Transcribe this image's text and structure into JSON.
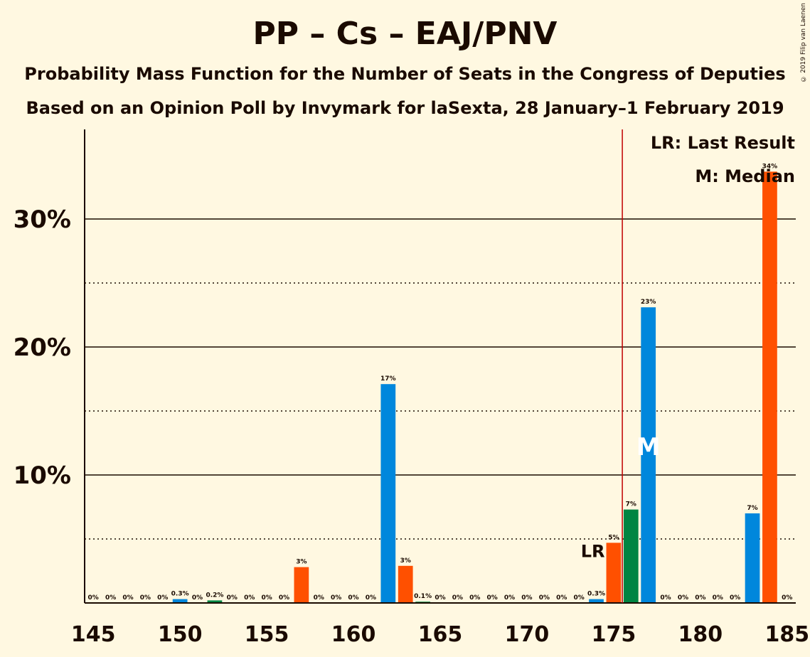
{
  "title": "PP – Cs – EAJ/PNV",
  "subtitle1": "Probability Mass Function for the Number of Seats in the Congress of Deputies",
  "subtitle2": "Based on an Opinion Poll by Invymark for laSexta, 28 January–1 February 2019",
  "copyright": "© 2019 Filip van Laenen",
  "legend": {
    "last_result": "LR: Last Result",
    "median": "M: Median"
  },
  "markers": {
    "last_result_label": "LR",
    "median_label": "M",
    "last_result_seat": 175,
    "median_seat": 177,
    "majority_line": 176
  },
  "colors": {
    "pp": "#0087DC",
    "cs": "#FF5000",
    "pnv": "#008542",
    "majority": "#C00000",
    "text": "#1a0a00"
  },
  "chart_data": {
    "type": "bar",
    "x": [
      145,
      146,
      147,
      148,
      149,
      150,
      151,
      152,
      153,
      154,
      155,
      156,
      157,
      158,
      159,
      160,
      161,
      162,
      163,
      164,
      165,
      166,
      167,
      168,
      169,
      170,
      171,
      172,
      173,
      174,
      175,
      176,
      177,
      178,
      179,
      180,
      181,
      182,
      183,
      184,
      185
    ],
    "values": [
      0,
      0,
      0,
      0,
      0,
      0.3,
      0,
      0.2,
      0,
      0,
      0,
      0,
      2.8,
      0,
      0,
      0,
      0,
      17.1,
      2.9,
      0.1,
      0,
      0,
      0,
      0,
      0,
      0,
      0,
      0,
      0,
      0.3,
      4.7,
      7.3,
      23.1,
      0,
      0,
      0,
      0,
      0,
      7.0,
      33.7,
      0
    ],
    "labels": [
      "0%",
      "0%",
      "0%",
      "0%",
      "0%",
      "0.3%",
      "0%",
      "0.2%",
      "0%",
      "0%",
      "0%",
      "0%",
      "3%",
      "0%",
      "0%",
      "0%",
      "0%",
      "17%",
      "3%",
      "0.1%",
      "0%",
      "0%",
      "0%",
      "0%",
      "0%",
      "0%",
      "0%",
      "0%",
      "0%",
      "0.3%",
      "5%",
      "7%",
      "23%",
      "0%",
      "0%",
      "0%",
      "0%",
      "0%",
      "7%",
      "34%",
      "0%"
    ],
    "bar_colors": [
      "#0087DC",
      "#FF5000",
      "#008542",
      "#0087DC",
      "#FF5000",
      "#0087DC",
      "#FF5000",
      "#008542",
      "#0087DC",
      "#FF5000",
      "#008542",
      "#0087DC",
      "#FF5000",
      "#008542",
      "#0087DC",
      "#FF5000",
      "#008542",
      "#0087DC",
      "#FF5000",
      "#008542",
      "#0087DC",
      "#FF5000",
      "#008542",
      "#0087DC",
      "#FF5000",
      "#008542",
      "#0087DC",
      "#FF5000",
      "#008542",
      "#0087DC",
      "#FF5000",
      "#008542",
      "#0087DC",
      "#FF5000",
      "#008542",
      "#0087DC",
      "#FF5000",
      "#008542",
      "#0087DC",
      "#FF5000",
      "#008542"
    ],
    "x_ticks": [
      145,
      150,
      155,
      160,
      165,
      170,
      175,
      180,
      185
    ],
    "y_ticks": [
      10,
      20,
      30
    ],
    "y_tick_labels": [
      "10%",
      "20%",
      "30%"
    ],
    "y_minor_ticks": [
      5,
      15,
      25
    ],
    "xlim": [
      144.5,
      185.5
    ],
    "ylim": [
      0,
      37
    ],
    "grid": true
  }
}
